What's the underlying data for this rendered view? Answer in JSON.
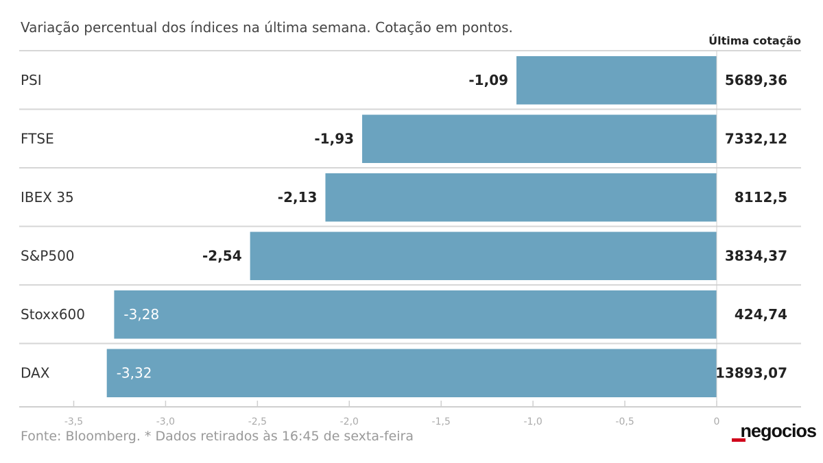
{
  "chart_data": {
    "type": "bar",
    "orientation": "horizontal",
    "subtitle": "Variação percentual dos índices na última semana. Cotação em pontos.",
    "column_header": "Última cotação",
    "categories": [
      "PSI",
      "FTSE",
      "IBEX 35",
      "S&P500",
      "Stoxx600",
      "DAX"
    ],
    "values": [
      -1.09,
      -1.93,
      -2.13,
      -2.54,
      -3.28,
      -3.32
    ],
    "value_labels": [
      "-1,09",
      "-1,93",
      "-2,13",
      "-2,54",
      "-3,28",
      "-3,32"
    ],
    "last_quote_labels": [
      "5689,36",
      "7332,12",
      "8112,5",
      "3834,37",
      "424,74",
      "13893,07"
    ],
    "x_ticks": [
      -3.5,
      -3.0,
      -2.5,
      -2.0,
      -1.5,
      -1.0,
      -0.5,
      0
    ],
    "x_tick_labels": [
      "-3,5",
      "-3,0",
      "-2,5",
      "-2,0",
      "-1,5",
      "-1,0",
      "-0,5",
      "0"
    ],
    "xlim": [
      -3.5,
      0
    ],
    "bar_color": "#6ba3bf",
    "source": "Fonte: Bloomberg.  * Dados retirados às 16:45 de sexta-feira"
  },
  "brand": {
    "logo": "negocios",
    "logo_accent": "#d0021b"
  }
}
